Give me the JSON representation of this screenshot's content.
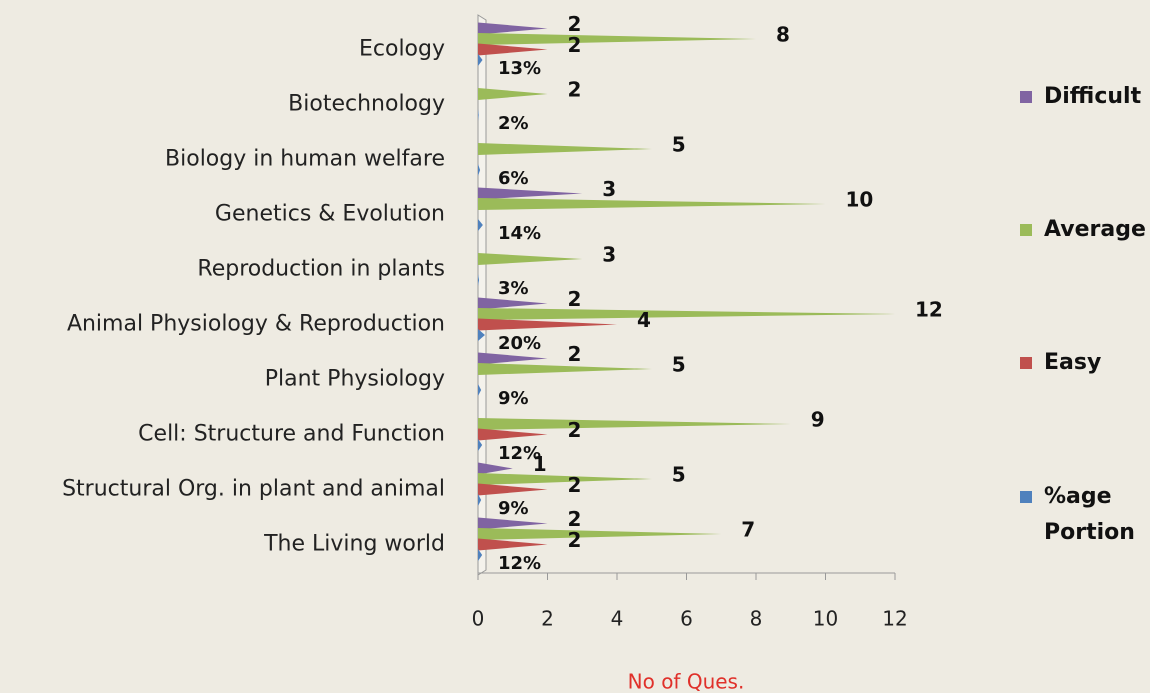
{
  "chart_data": {
    "type": "bar",
    "orientation": "horizontal",
    "x_label": "No of Ques.",
    "categories": [
      "The Living world",
      "Structural Org. in plant and animal",
      "Cell: Structure and Function",
      "Plant Physiology",
      "Animal Physiology & Reproduction",
      "Reproduction in plants",
      "Genetics & Evolution",
      "Biology in human welfare",
      "Biotechnology",
      "Ecology"
    ],
    "series": [
      {
        "name": "Difficult",
        "color": "#8064a2",
        "values": [
          2,
          1,
          null,
          2,
          2,
          null,
          3,
          null,
          null,
          2
        ]
      },
      {
        "name": "Average",
        "color": "#9bbb59",
        "values": [
          7,
          5,
          9,
          5,
          12,
          3,
          10,
          5,
          2,
          8
        ]
      },
      {
        "name": "Easy",
        "color": "#c0504d",
        "values": [
          2,
          2,
          2,
          null,
          4,
          null,
          null,
          null,
          null,
          2
        ]
      },
      {
        "name": "%age Portion",
        "color": "#4f81bd",
        "values": [
          0.12,
          0.09,
          0.12,
          0.09,
          0.2,
          0.03,
          0.14,
          0.06,
          0.02,
          0.13
        ],
        "value_labels": [
          "12%",
          "9%",
          "12%",
          "9%",
          "20%",
          "3%",
          "14%",
          "6%",
          "2%",
          "13%"
        ]
      }
    ],
    "xlim": [
      0,
      12
    ],
    "xticks": [
      0,
      2,
      4,
      6,
      8,
      10,
      12
    ],
    "legend": "right"
  }
}
